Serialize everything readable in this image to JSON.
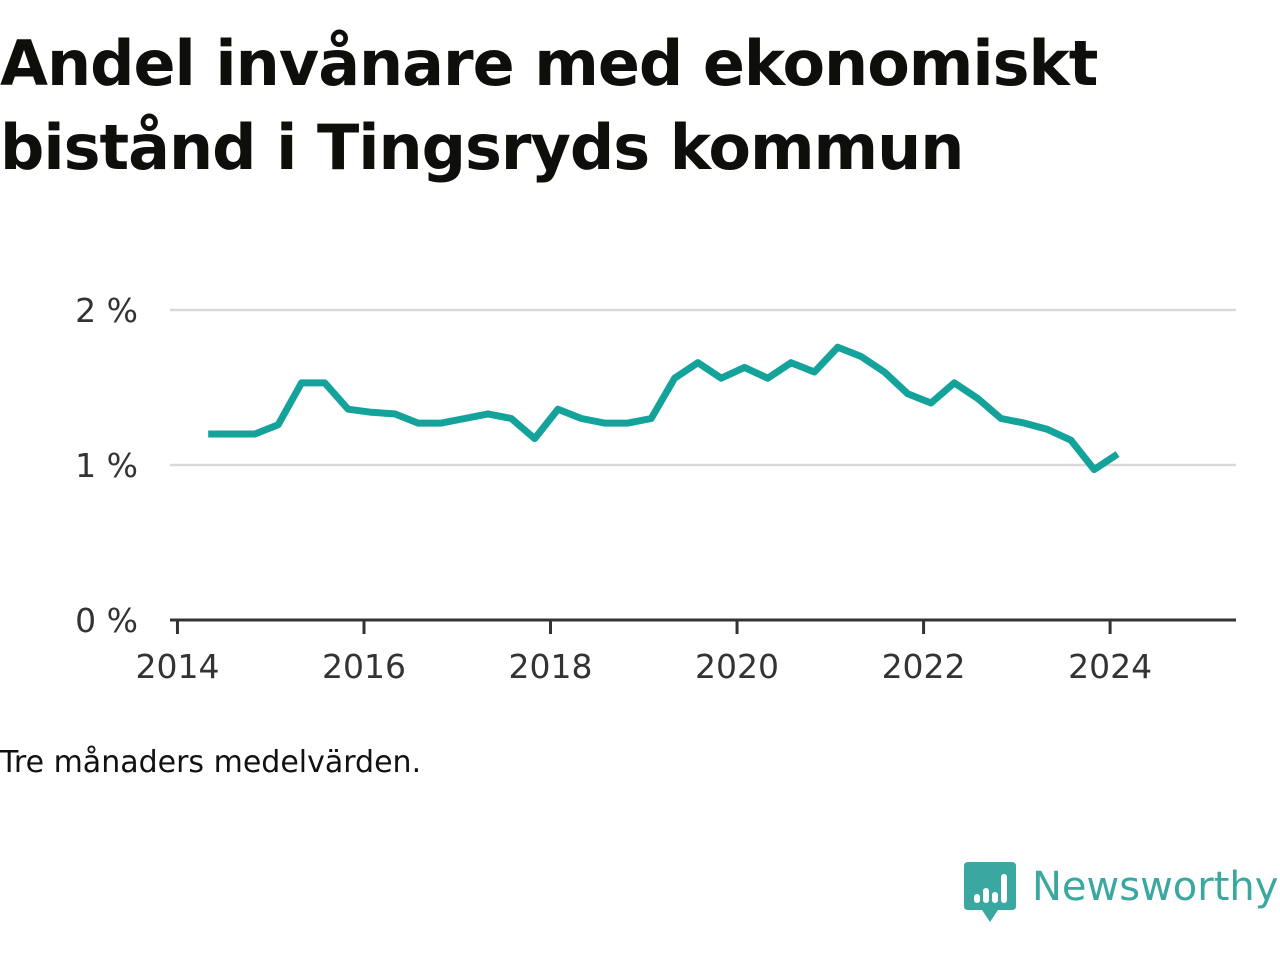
{
  "title": "Andel invånare med ekonomiskt bistånd i Tingsryds kommun",
  "note": "Tre månaders medelvärden.",
  "brand": {
    "name": "Newsworthy",
    "icon": "newsworthy-logo-icon",
    "color": "#3aa8a0"
  },
  "chart_data": {
    "type": "line",
    "title": "Andel invånare med ekonomiskt bistånd i Tingsryds kommun",
    "xlabel": "",
    "ylabel": "",
    "xlim": [
      2013.92,
      2025.35
    ],
    "ylim": [
      0,
      2
    ],
    "x_ticks": [
      2014,
      2016,
      2018,
      2020,
      2022,
      2024
    ],
    "x_tick_labels": [
      "2014",
      "2016",
      "2018",
      "2020",
      "2022",
      "2024"
    ],
    "y_ticks": [
      0,
      1,
      2
    ],
    "y_tick_labels": [
      "0 %",
      "1 %",
      "2 %"
    ],
    "grid": true,
    "legend": "none",
    "line_color": "#14a39a",
    "series": [
      {
        "x": [
          2014.33,
          2014.58,
          2014.83,
          2015.08,
          2015.33,
          2015.58,
          2015.83,
          2016.08,
          2016.33,
          2016.58,
          2016.83,
          2017.08,
          2017.33,
          2017.58,
          2017.83,
          2018.08,
          2018.33,
          2018.58,
          2018.83,
          2019.08,
          2019.33,
          2019.58,
          2019.83,
          2020.08,
          2020.33,
          2020.58,
          2020.83,
          2021.08,
          2021.33,
          2021.58,
          2021.83,
          2022.08,
          2022.33,
          2022.58,
          2022.83,
          2023.08,
          2023.33,
          2023.58,
          2023.83,
          2024.08
        ],
        "values": [
          1.2,
          1.2,
          1.2,
          1.26,
          1.53,
          1.53,
          1.36,
          1.34,
          1.33,
          1.27,
          1.27,
          1.3,
          1.33,
          1.3,
          1.17,
          1.36,
          1.3,
          1.27,
          1.27,
          1.3,
          1.56,
          1.66,
          1.56,
          1.63,
          1.56,
          1.66,
          1.6,
          1.76,
          1.7,
          1.6,
          1.46,
          1.4,
          1.53,
          1.43,
          1.3,
          1.27,
          1.23,
          1.16,
          0.97,
          1.07
        ]
      }
    ]
  }
}
